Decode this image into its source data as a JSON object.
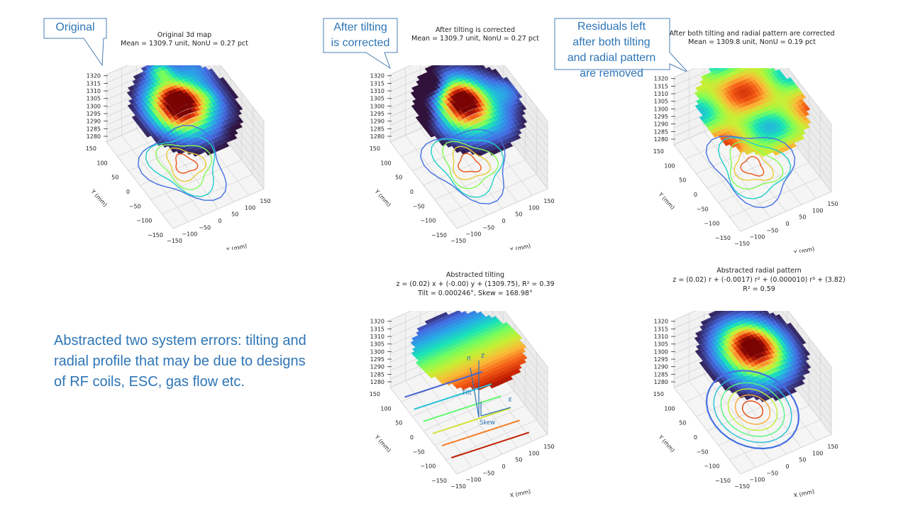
{
  "callouts": {
    "original": "Original",
    "tilt": [
      "After tilting",
      "is corrected"
    ],
    "residual": [
      "Residuals left",
      "after both tilting",
      "and radial pattern",
      "are removed"
    ]
  },
  "note": "Abstracted two system errors: tilting and radial profile that may be due to designs of RF coils, ESC, gas flow etc.",
  "panels": [
    {
      "id": "p1",
      "title": [
        "Original 3d map",
        "Mean = 1309.7 unit,   NonU = 0.27 pct"
      ]
    },
    {
      "id": "p2",
      "title": [
        "After tilting is corrected",
        "Mean = 1309.7 unit,   NonU = 0.27 pct"
      ]
    },
    {
      "id": "p3",
      "title": [
        "After both tilting and radial pattern are corrected",
        "Mean = 1309.8 unit,   NonU = 0.19 pct"
      ]
    },
    {
      "id": "p4",
      "title": [
        "Abstracted tilting",
        "z = (0.02) x + (-0.00) y + (1309.75), R² = 0.39",
        "Tilt = 0.000246°,   Skew = 168.98°"
      ]
    },
    {
      "id": "p5",
      "title": [
        "Abstracted radial pattern",
        "z = (0.02) r + (-0.0017) r² + (0.000010) r³ + (3.82)",
        "R² = 0.59"
      ]
    }
  ],
  "axes": {
    "z_ticks": [
      "1320",
      "1315",
      "1310",
      "1305",
      "1300",
      "1295",
      "1290",
      "1285",
      "1280"
    ],
    "xy_ticks": [
      "150",
      "100",
      "50",
      "0",
      "−50",
      "−100",
      "−150"
    ],
    "x_ticks": [
      "−150",
      "−100",
      "−50",
      "0",
      "50",
      "100",
      "150"
    ],
    "xlabel": "X (mm)",
    "ylabel": "Y (mm)"
  },
  "vectors": {
    "n": "n⃗",
    "z": "z⃗",
    "x": "x⃗",
    "tilt": "Tilt",
    "skew": "Skew"
  },
  "colors": {
    "callout_text": "#2e75b6",
    "callout_border": "#4a7fb5"
  }
}
